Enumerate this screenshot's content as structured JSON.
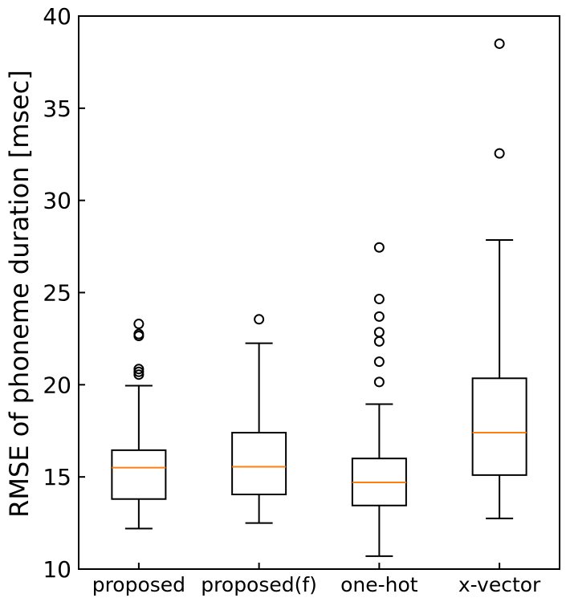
{
  "chart_data": {
    "type": "box",
    "ylabel": "RMSE of phoneme duration [msec]",
    "ylim": [
      10,
      40
    ],
    "yticks": [
      10,
      15,
      20,
      25,
      30,
      35,
      40
    ],
    "categories": [
      "proposed",
      "proposed(f)",
      "one-hot",
      "x-vector"
    ],
    "boxes": [
      {
        "name": "proposed",
        "whisker_low": 12.2,
        "q1": 13.8,
        "median": 15.5,
        "q3": 16.45,
        "whisker_high": 19.95,
        "outliers": [
          20.55,
          20.7,
          20.85,
          22.65,
          22.75,
          23.3
        ]
      },
      {
        "name": "proposed(f)",
        "whisker_low": 12.5,
        "q1": 14.05,
        "median": 15.55,
        "q3": 17.4,
        "whisker_high": 22.25,
        "outliers": [
          23.55
        ]
      },
      {
        "name": "one-hot",
        "whisker_low": 10.7,
        "q1": 13.45,
        "median": 14.7,
        "q3": 16.0,
        "whisker_high": 18.95,
        "outliers": [
          20.15,
          21.25,
          22.35,
          22.85,
          23.7,
          24.65,
          27.45
        ]
      },
      {
        "name": "x-vector",
        "whisker_low": 12.75,
        "q1": 15.1,
        "median": 17.4,
        "q3": 20.35,
        "whisker_high": 27.85,
        "outliers": [
          32.55,
          38.5
        ]
      }
    ],
    "colors": {
      "box": "#000000",
      "median": "#ff7f0e",
      "outlier": "#000000"
    },
    "grid": false
  }
}
